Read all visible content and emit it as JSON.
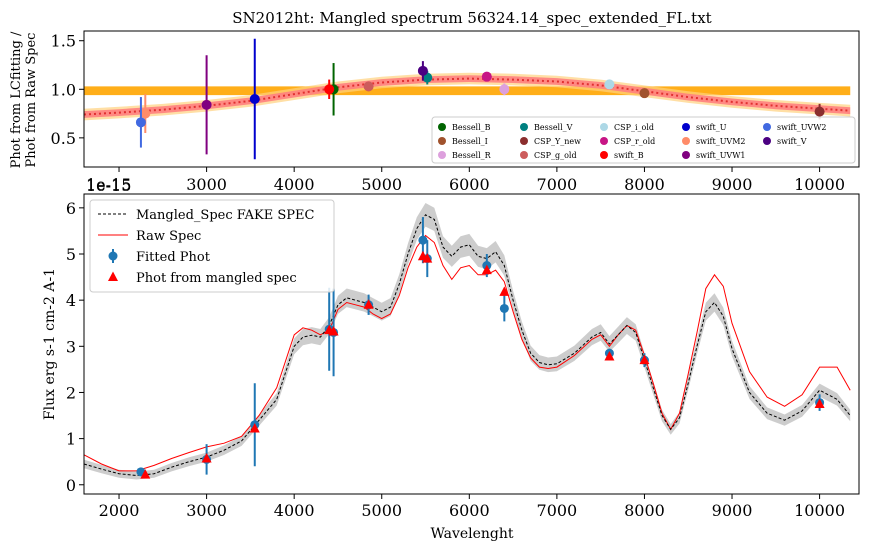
{
  "chart_data": [
    {
      "type": "scatter",
      "title": "SN2012ht: Mangled spectrum 56324.14_spec_extended_FL.txt",
      "ylabel_lines": [
        "Phot from LCfitting /",
        "Phot from Raw Spec"
      ],
      "xlim": [
        1600,
        10450
      ],
      "ylim": [
        0.2,
        1.6
      ],
      "xticks": [
        2000,
        3000,
        4000,
        5000,
        6000,
        7000,
        8000,
        9000,
        10000
      ],
      "yticks": [
        0.5,
        1.0,
        1.5
      ],
      "ytick_labels": [
        "0.5",
        "1.0",
        "1.5"
      ],
      "offset_text": "1e-15",
      "legend_position": "lower right",
      "legend_columns": 5,
      "band_fill": {
        "x_range": [
          1600,
          10350
        ],
        "color": "#ffa500"
      },
      "ratio_curve": {
        "x": [
          1600,
          2000,
          2500,
          3000,
          3500,
          4000,
          4500,
          5000,
          5500,
          6000,
          6500,
          7000,
          7500,
          8000,
          8500,
          9000,
          9500,
          10000,
          10350
        ],
        "y": [
          0.74,
          0.76,
          0.79,
          0.83,
          0.88,
          0.95,
          1.02,
          1.07,
          1.1,
          1.11,
          1.1,
          1.08,
          1.04,
          0.98,
          0.92,
          0.87,
          0.83,
          0.8,
          0.78
        ],
        "color": "#ff4d4d"
      },
      "points": [
        {
          "name": "Bessell_B",
          "color": "#006400",
          "x": 4450,
          "y": 1.0,
          "err": 0.27
        },
        {
          "name": "Bessell_I",
          "color": "#a0522d",
          "x": 8000,
          "y": 0.96,
          "err": 0.03
        },
        {
          "name": "Bessell_R",
          "color": "#dda0dd",
          "x": 6400,
          "y": 1.0,
          "err": 0.06
        },
        {
          "name": "Bessell_V",
          "color": "#008080",
          "x": 5520,
          "y": 1.12,
          "err": 0.07
        },
        {
          "name": "CSP_Y_new",
          "color": "#8b2e2e",
          "x": 10000,
          "y": 0.77,
          "err": 0.08
        },
        {
          "name": "CSP_g_old",
          "color": "#cd5c5c",
          "x": 4850,
          "y": 1.03,
          "err": 0.05
        },
        {
          "name": "CSP_i_old",
          "color": "#add8e6",
          "x": 7600,
          "y": 1.05,
          "err": 0.03
        },
        {
          "name": "CSP_r_old",
          "color": "#c71585",
          "x": 6200,
          "y": 1.13,
          "err": 0.04
        },
        {
          "name": "swift_B",
          "color": "#ff0000",
          "x": 4400,
          "y": 1.0,
          "err": 0.1
        },
        {
          "name": "swift_U",
          "color": "#0000cd",
          "x": 3550,
          "y": 0.9,
          "err": 0.62
        },
        {
          "name": "swift_UVM2",
          "color": "#ff8c69",
          "x": 2300,
          "y": 0.75,
          "err": 0.2
        },
        {
          "name": "swift_UVW1",
          "color": "#800080",
          "x": 3000,
          "y": 0.84,
          "err": 0.51
        },
        {
          "name": "swift_UVW2",
          "color": "#4169e1",
          "x": 2250,
          "y": 0.66,
          "err": 0.26
        },
        {
          "name": "swift_V",
          "color": "#4b0082",
          "x": 5470,
          "y": 1.19,
          "err": 0.1
        }
      ]
    },
    {
      "type": "line",
      "xlabel": "Wavelenght",
      "ylabel": "Flux erg s-1 cm-2 A-1",
      "offset_text": "1e-15",
      "xlim": [
        1600,
        10450
      ],
      "ylim": [
        -0.2,
        6.3
      ],
      "xticks": [
        2000,
        3000,
        4000,
        5000,
        6000,
        7000,
        8000,
        9000,
        10000
      ],
      "yticks": [
        0,
        1,
        2,
        3,
        4,
        5,
        6
      ],
      "legend_position": "upper left",
      "series": [
        {
          "name": "Mangled_Spec FAKE SPEC",
          "style": "dashed",
          "color": "#000000",
          "band_color": "#c8c8c8",
          "x": [
            1600,
            1800,
            2000,
            2200,
            2400,
            2600,
            2800,
            3000,
            3200,
            3400,
            3600,
            3800,
            4000,
            4100,
            4200,
            4300,
            4400,
            4500,
            4600,
            4700,
            4800,
            4900,
            5000,
            5100,
            5200,
            5300,
            5400,
            5500,
            5600,
            5700,
            5800,
            5900,
            6000,
            6100,
            6200,
            6300,
            6400,
            6500,
            6600,
            6700,
            6800,
            6900,
            7000,
            7200,
            7400,
            7500,
            7600,
            7700,
            7800,
            7900,
            8000,
            8100,
            8200,
            8300,
            8400,
            8500,
            8600,
            8700,
            8800,
            8900,
            9000,
            9200,
            9400,
            9600,
            9800,
            10000,
            10200,
            10350
          ],
          "y": [
            0.45,
            0.34,
            0.24,
            0.2,
            0.24,
            0.38,
            0.5,
            0.6,
            0.75,
            0.95,
            1.4,
            1.85,
            3.0,
            3.2,
            3.24,
            3.2,
            3.45,
            3.9,
            4.05,
            4.0,
            3.95,
            3.85,
            3.75,
            3.85,
            4.35,
            5.0,
            5.55,
            5.85,
            5.75,
            5.15,
            4.95,
            5.15,
            5.2,
            4.95,
            4.9,
            5.05,
            4.75,
            4.0,
            3.35,
            2.85,
            2.65,
            2.6,
            2.62,
            2.85,
            3.2,
            3.3,
            3.05,
            3.25,
            3.45,
            3.3,
            2.7,
            2.1,
            1.5,
            1.2,
            1.45,
            2.2,
            3.0,
            3.75,
            3.95,
            3.65,
            2.95,
            2.0,
            1.55,
            1.4,
            1.6,
            2.05,
            1.85,
            1.5
          ]
        },
        {
          "name": "Raw Spec",
          "style": "solid",
          "color": "#ff0000",
          "x": [
            1600,
            1800,
            2000,
            2200,
            2400,
            2600,
            2800,
            3000,
            3200,
            3400,
            3600,
            3800,
            4000,
            4100,
            4200,
            4300,
            4400,
            4500,
            4600,
            4700,
            4800,
            4900,
            5000,
            5100,
            5200,
            5300,
            5400,
            5500,
            5600,
            5700,
            5800,
            5900,
            6000,
            6100,
            6200,
            6300,
            6400,
            6500,
            6600,
            6700,
            6800,
            6900,
            7000,
            7200,
            7400,
            7500,
            7600,
            7700,
            7800,
            7900,
            8000,
            8100,
            8200,
            8300,
            8400,
            8500,
            8600,
            8700,
            8800,
            8900,
            9000,
            9200,
            9400,
            9600,
            9800,
            10000,
            10200,
            10350
          ],
          "y": [
            0.65,
            0.45,
            0.3,
            0.3,
            0.42,
            0.57,
            0.7,
            0.82,
            0.9,
            1.05,
            1.5,
            2.1,
            3.25,
            3.4,
            3.35,
            3.25,
            3.35,
            3.8,
            3.95,
            3.9,
            3.85,
            3.7,
            3.6,
            3.7,
            4.1,
            4.7,
            5.15,
            5.4,
            5.25,
            4.75,
            4.45,
            4.7,
            4.75,
            4.55,
            4.55,
            4.65,
            4.4,
            3.75,
            3.15,
            2.75,
            2.55,
            2.52,
            2.55,
            2.8,
            3.15,
            3.25,
            3.0,
            3.25,
            3.45,
            3.35,
            2.8,
            2.2,
            1.55,
            1.2,
            1.55,
            2.4,
            3.3,
            4.25,
            4.55,
            4.3,
            3.5,
            2.45,
            1.9,
            1.7,
            1.95,
            2.55,
            2.55,
            2.05
          ]
        }
      ],
      "fitted_phot": {
        "name": "Fitted Phot",
        "color": "#1f77b4",
        "points": [
          {
            "x": 2250,
            "y": 0.28,
            "err": 0.05
          },
          {
            "x": 3000,
            "y": 0.55,
            "err": 0.33
          },
          {
            "x": 3550,
            "y": 1.3,
            "err": 0.9
          },
          {
            "x": 4400,
            "y": 3.37,
            "err": 0.9
          },
          {
            "x": 4450,
            "y": 3.3,
            "err": 0.95
          },
          {
            "x": 4850,
            "y": 3.9,
            "err": 0.22
          },
          {
            "x": 5470,
            "y": 5.3,
            "err": 0.5
          },
          {
            "x": 5520,
            "y": 4.9,
            "err": 0.4
          },
          {
            "x": 6200,
            "y": 4.75,
            "err": 0.25
          },
          {
            "x": 6400,
            "y": 3.82,
            "err": 0.28
          },
          {
            "x": 7600,
            "y": 2.85,
            "err": 0.1
          },
          {
            "x": 8000,
            "y": 2.7,
            "err": 0.15
          },
          {
            "x": 10000,
            "y": 1.78,
            "err": 0.18
          }
        ]
      },
      "mangled_phot": {
        "name": "Phot from mangled spec",
        "color": "#ff0000",
        "points": [
          {
            "x": 2300,
            "y": 0.22
          },
          {
            "x": 3000,
            "y": 0.57
          },
          {
            "x": 3550,
            "y": 1.22
          },
          {
            "x": 4400,
            "y": 3.35
          },
          {
            "x": 4450,
            "y": 3.32
          },
          {
            "x": 4850,
            "y": 3.9
          },
          {
            "x": 5470,
            "y": 4.95
          },
          {
            "x": 5520,
            "y": 4.9
          },
          {
            "x": 6200,
            "y": 4.65
          },
          {
            "x": 6400,
            "y": 4.18
          },
          {
            "x": 7600,
            "y": 2.78
          },
          {
            "x": 8000,
            "y": 2.7
          },
          {
            "x": 10000,
            "y": 1.75
          }
        ]
      }
    }
  ]
}
